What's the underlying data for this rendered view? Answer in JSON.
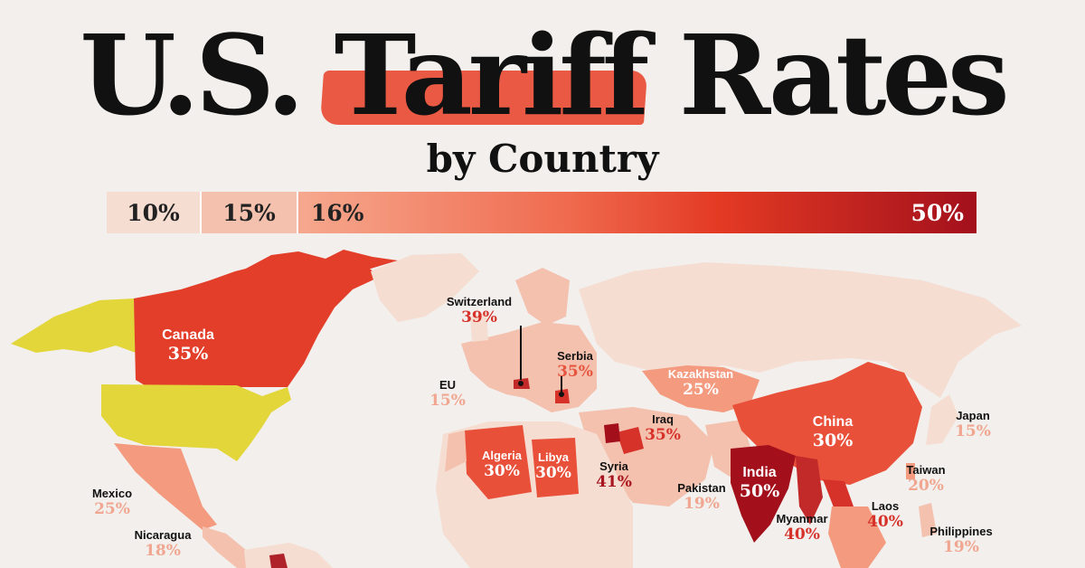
{
  "title": {
    "main": "U.S. Tariff Rates",
    "sub": "by Country"
  },
  "legend": {
    "stops": [
      "10%",
      "15%",
      "16%",
      "50%"
    ]
  },
  "colors": {
    "rate_10": "#f6ddd2",
    "rate_15": "#f4c1ae",
    "rate_16": "#f6a88e",
    "rate_30": "#e8503a",
    "rate_50": "#a3101c",
    "highlight": "#e2d63a"
  },
  "countries": [
    {
      "name": "Canada",
      "rate": "35%"
    },
    {
      "name": "Switzerland",
      "rate": "39%"
    },
    {
      "name": "Serbia",
      "rate": "35%"
    },
    {
      "name": "EU",
      "rate": "15%"
    },
    {
      "name": "Kazakhstan",
      "rate": "25%"
    },
    {
      "name": "Iraq",
      "rate": "35%"
    },
    {
      "name": "China",
      "rate": "30%"
    },
    {
      "name": "Japan",
      "rate": "15%"
    },
    {
      "name": "Algeria",
      "rate": "30%"
    },
    {
      "name": "Libya",
      "rate": "30%"
    },
    {
      "name": "Syria",
      "rate": "41%"
    },
    {
      "name": "Taiwan",
      "rate": "20%"
    },
    {
      "name": "Pakistan",
      "rate": "19%"
    },
    {
      "name": "India",
      "rate": "50%"
    },
    {
      "name": "Laos",
      "rate": "40%"
    },
    {
      "name": "Mexico",
      "rate": "25%"
    },
    {
      "name": "Myanmar",
      "rate": "40%"
    },
    {
      "name": "Philippines",
      "rate": "19%"
    },
    {
      "name": "Nicaragua",
      "rate": "18%"
    }
  ]
}
